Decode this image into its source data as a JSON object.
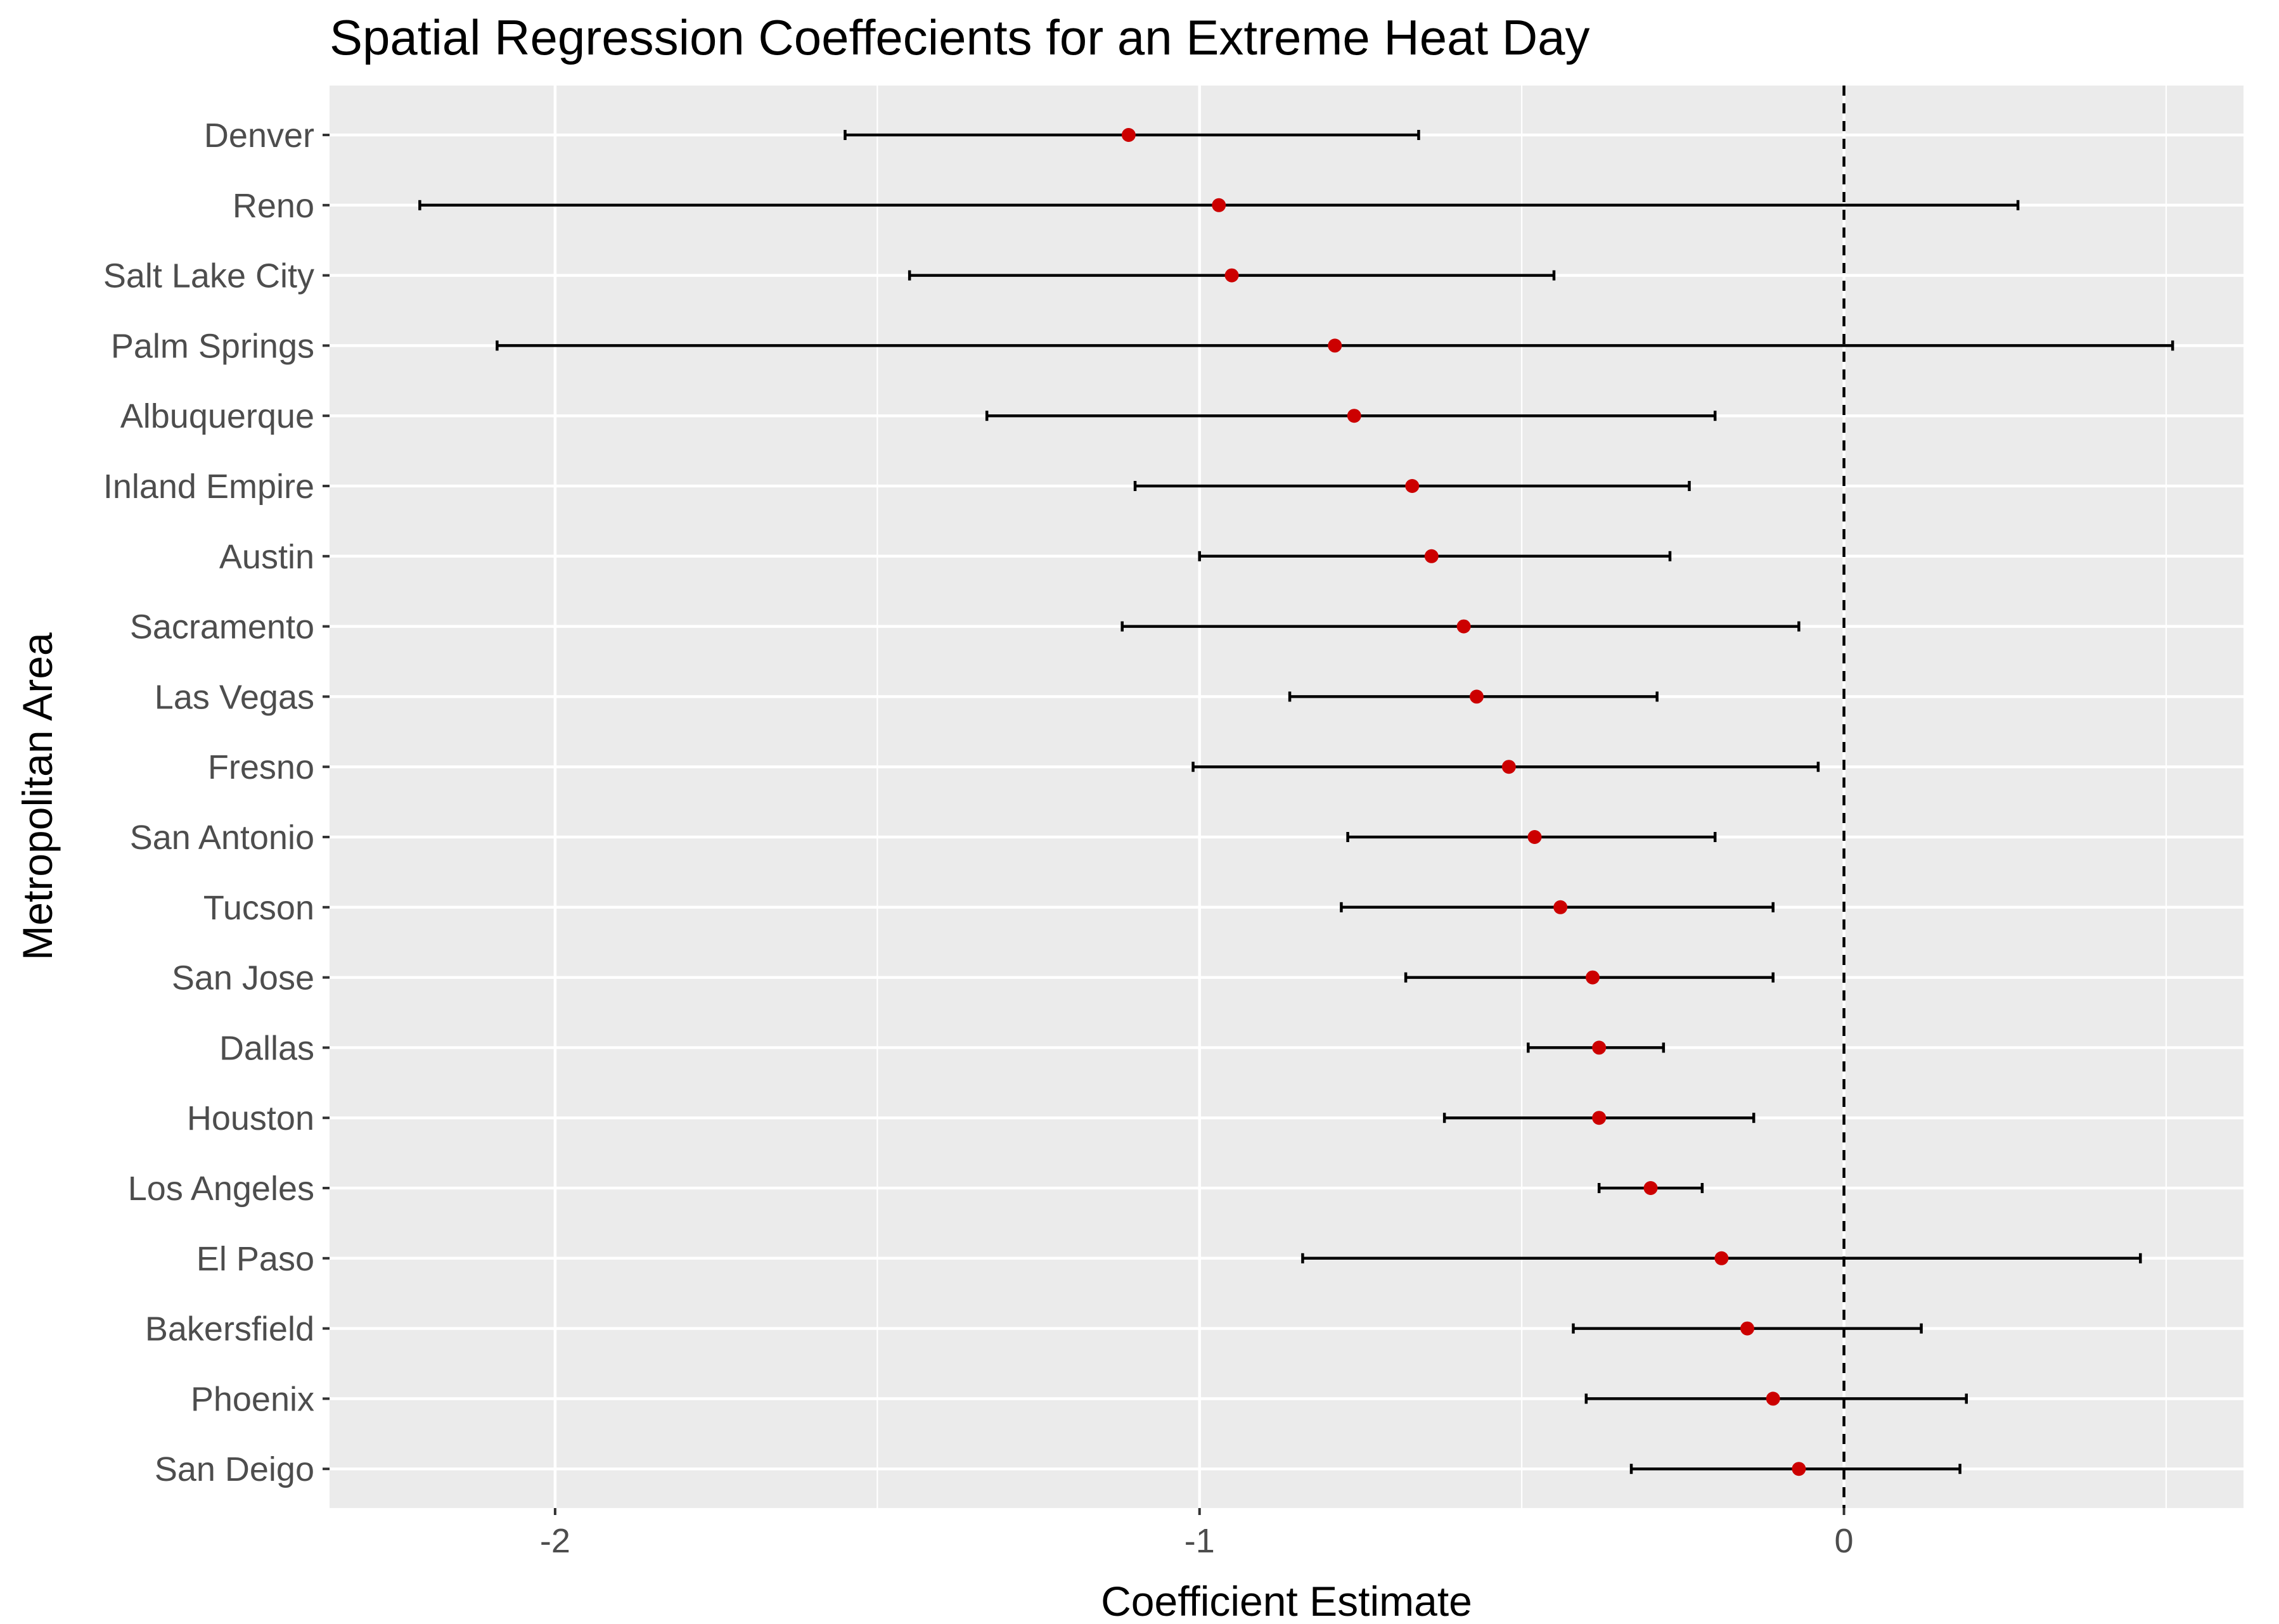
{
  "colors": {
    "panel_background": "#ebebeb",
    "grid": "#ffffff",
    "point": "#cc0000",
    "error_bar": "#000000",
    "reference_line": "#000000"
  },
  "chart_data": {
    "type": "errorbar-dot",
    "title": "Spatial Regression Coeffecients for an Extreme Heat Day",
    "xlabel": "Coefficient Estimate",
    "ylabel": "Metropolitan Area",
    "xlim": [
      -2.35,
      0.62
    ],
    "x_ticks": [
      -2,
      -1,
      0
    ],
    "x_tick_labels": [
      "-2",
      "-1",
      "0"
    ],
    "x_minor_ticks": [
      -1.5,
      -0.5,
      0.5
    ],
    "reference_line": {
      "x": 0,
      "style": "dashed"
    },
    "grid": true,
    "categories": [
      "Denver",
      "Reno",
      "Salt Lake City",
      "Palm Springs",
      "Albuquerque",
      "Inland Empire",
      "Austin",
      "Sacramento",
      "Las Vegas",
      "Fresno",
      "San Antonio",
      "Tucson",
      "San Jose",
      "Dallas",
      "Houston",
      "Los Angeles",
      "El Paso",
      "Bakersfield",
      "Phoenix",
      "San Deigo"
    ],
    "estimates": [
      -1.11,
      -0.97,
      -0.95,
      -0.79,
      -0.76,
      -0.67,
      -0.64,
      -0.59,
      -0.57,
      -0.52,
      -0.48,
      -0.44,
      -0.39,
      -0.38,
      -0.38,
      -0.3,
      -0.19,
      -0.15,
      -0.11,
      -0.07
    ],
    "ci_lower": [
      -1.55,
      -2.21,
      -1.45,
      -2.09,
      -1.33,
      -1.1,
      -1.0,
      -1.12,
      -0.86,
      -1.01,
      -0.77,
      -0.78,
      -0.68,
      -0.49,
      -0.62,
      -0.38,
      -0.84,
      -0.42,
      -0.4,
      -0.33
    ],
    "ci_upper": [
      -0.66,
      0.27,
      -0.45,
      0.51,
      -0.2,
      -0.24,
      -0.27,
      -0.07,
      -0.29,
      -0.04,
      -0.2,
      -0.11,
      -0.11,
      -0.28,
      -0.14,
      -0.22,
      0.46,
      0.12,
      0.19,
      0.18
    ]
  }
}
